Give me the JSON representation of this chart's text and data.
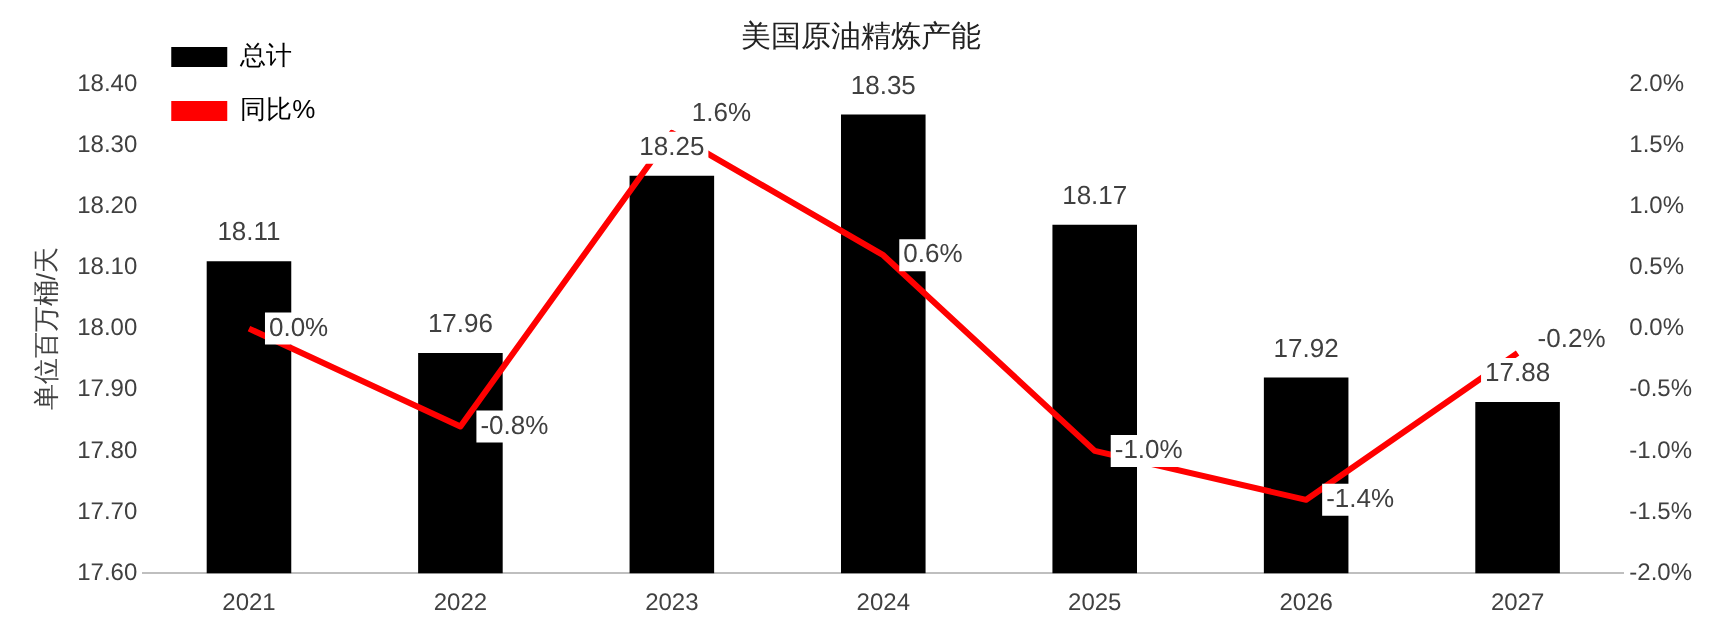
{
  "chart_data": {
    "type": "bar",
    "title": "美国原油精炼产能",
    "ylabel": "单位百万桶/天",
    "categories": [
      "2021",
      "2022",
      "2023",
      "2024",
      "2025",
      "2026",
      "2027"
    ],
    "series": [
      {
        "name": "总计",
        "type": "bar",
        "color": "#000000",
        "values": [
          18.11,
          17.96,
          18.25,
          18.35,
          18.17,
          17.92,
          17.88
        ],
        "value_labels": [
          "18.11",
          "17.96",
          "18.25",
          "18.35",
          "18.17",
          "17.92",
          "17.88"
        ]
      },
      {
        "name": "同比%",
        "type": "line",
        "axis": "y2",
        "color": "#ff0000",
        "values": [
          0.0,
          -0.8,
          1.6,
          0.6,
          -1.0,
          -1.4,
          -0.2
        ],
        "value_labels": [
          "0.0%",
          "-0.8%",
          "1.6%",
          "0.6%",
          "-1.0%",
          "-1.4%",
          "-0.2%"
        ]
      }
    ],
    "ylim": [
      17.6,
      18.4
    ],
    "yticks": [
      {
        "value": 17.6,
        "label": "17.60"
      },
      {
        "value": 17.7,
        "label": "17.70"
      },
      {
        "value": 17.8,
        "label": "17.80"
      },
      {
        "value": 17.9,
        "label": "17.90"
      },
      {
        "value": 18.0,
        "label": "18.00"
      },
      {
        "value": 18.1,
        "label": "18.10"
      },
      {
        "value": 18.2,
        "label": "18.20"
      },
      {
        "value": 18.3,
        "label": "18.30"
      },
      {
        "value": 18.4,
        "label": "18.40"
      }
    ],
    "y2lim": [
      -2.0,
      2.0
    ],
    "y2ticks": [
      {
        "value": -2.0,
        "label": "-2.0%"
      },
      {
        "value": -1.5,
        "label": "-1.5%"
      },
      {
        "value": -1.0,
        "label": "-1.0%"
      },
      {
        "value": -0.5,
        "label": "-0.5%"
      },
      {
        "value": 0.0,
        "label": "0.0%"
      },
      {
        "value": 0.5,
        "label": "0.5%"
      },
      {
        "value": 1.0,
        "label": "1.0%"
      },
      {
        "value": 1.5,
        "label": "1.5%"
      },
      {
        "value": 2.0,
        "label": "2.0%"
      }
    ],
    "grid": false,
    "legend": "top left",
    "marker": "none",
    "line_style": "solid"
  }
}
